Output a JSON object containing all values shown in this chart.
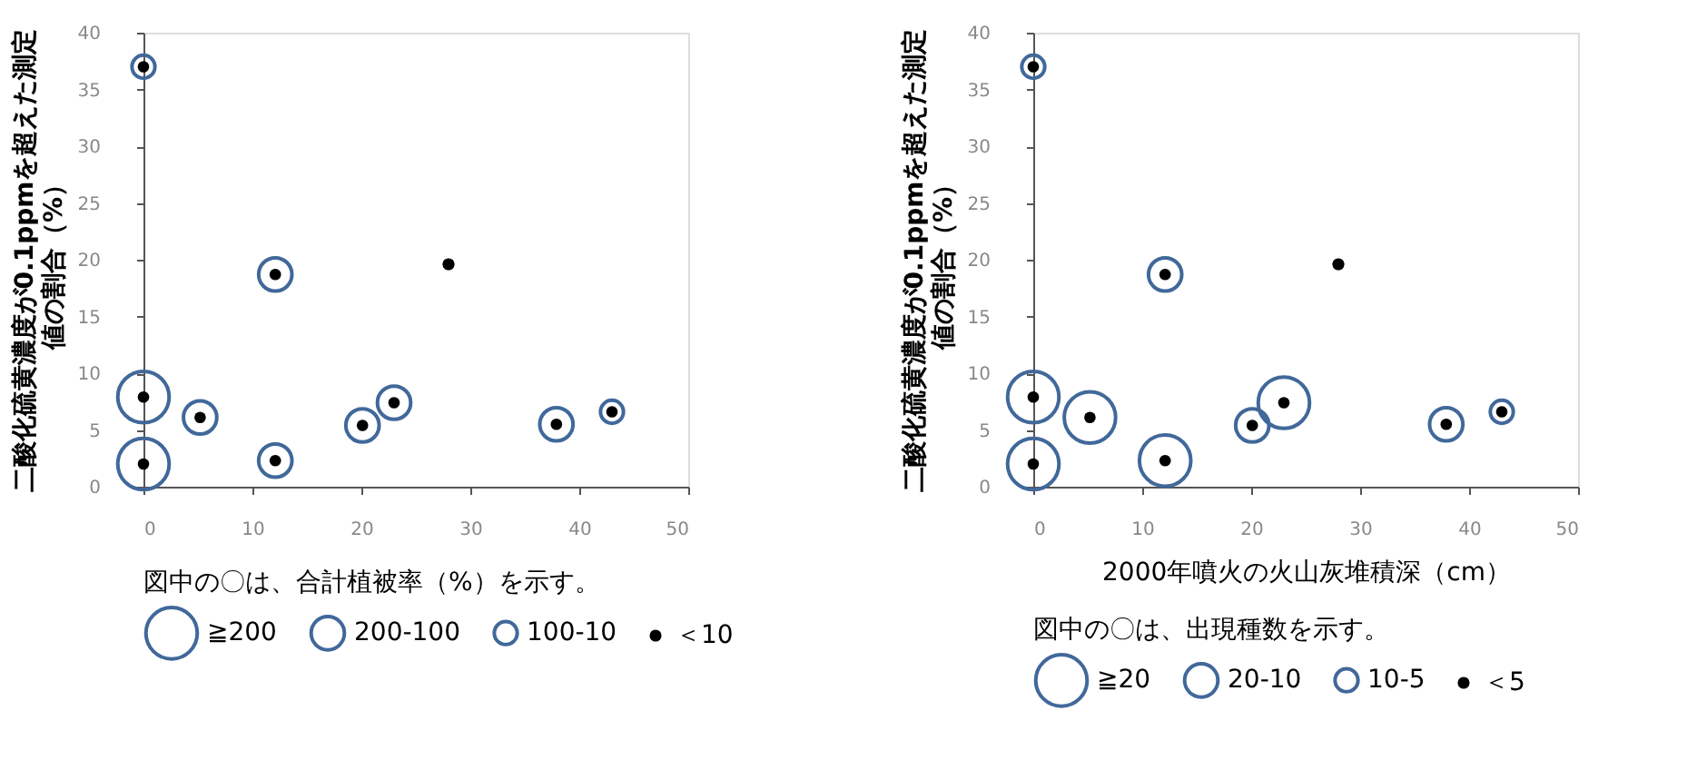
{
  "chart_data": [
    {
      "type": "bubble",
      "ylabel": "二酸化硫黄濃度が0.1ppmを超えた測定値の割合（%）",
      "legend_title": "図中の〇は、合計植被率（%）を示す。",
      "legend": "bottom",
      "grid": false,
      "xlim": [
        0,
        50
      ],
      "xticks": [
        0,
        10,
        20,
        30,
        40,
        50
      ],
      "ylim": [
        0,
        40
      ],
      "yticks": [
        0,
        5,
        10,
        15,
        20,
        25,
        30,
        35,
        40
      ],
      "series": [
        {
          "name": "≧200",
          "color": "#41689a",
          "x": [
            0,
            0
          ],
          "values": [
            7.9,
            2.0
          ],
          "sizes": [
            1,
            1
          ]
        },
        {
          "name": "200-100",
          "color": "#41689a",
          "x": [
            12.1,
            5.2,
            12.1,
            20.1,
            23.0,
            37.9
          ],
          "values": [
            18.7,
            6.1,
            2.3,
            5.4,
            7.4,
            5.5
          ],
          "sizes": [
            0.42,
            0.42,
            0.42,
            0.42,
            0.42,
            0.42
          ]
        },
        {
          "name": "100-10",
          "color": "#41689a",
          "x": [
            0,
            43.0
          ],
          "values": [
            37.0,
            6.6
          ],
          "sizes": [
            0.2,
            0.2
          ]
        },
        {
          "name": "＜10",
          "color": "#000000",
          "x": [
            28.0
          ],
          "values": [
            19.6
          ],
          "sizes": [
            0.026
          ]
        }
      ]
    },
    {
      "type": "bubble",
      "ylabel": "二酸化硫黄濃度が0.1ppmを超えた測定値の割合（%）",
      "xlabel": "2000年噴火の火山灰堆積深（cm）",
      "legend_title": "図中の〇は、出現種数を示す。",
      "legend": "bottom",
      "grid": false,
      "xlim": [
        0,
        50
      ],
      "xticks": [
        0,
        10,
        20,
        30,
        40,
        50
      ],
      "ylim": [
        0,
        40
      ],
      "yticks": [
        0,
        5,
        10,
        15,
        20,
        25,
        30,
        35,
        40
      ],
      "series": [
        {
          "name": "≧20",
          "color": "#41689a",
          "x": [
            0,
            5.2,
            0,
            12.1,
            23.0
          ],
          "values": [
            7.9,
            6.1,
            2.0,
            2.3,
            7.4
          ],
          "sizes": [
            1,
            1,
            1,
            1,
            1
          ]
        },
        {
          "name": "20-10",
          "color": "#41689a",
          "x": [
            12.1,
            20.1,
            37.9
          ],
          "values": [
            18.7,
            5.4,
            5.5
          ],
          "sizes": [
            0.42,
            0.42,
            0.42
          ]
        },
        {
          "name": "10-5",
          "color": "#41689a",
          "x": [
            0,
            43.0
          ],
          "values": [
            37.0,
            6.6
          ],
          "sizes": [
            0.2,
            0.2
          ]
        },
        {
          "name": "＜5",
          "color": "#000000",
          "x": [
            28.0
          ],
          "values": [
            19.6
          ],
          "sizes": [
            0.026
          ]
        }
      ]
    }
  ]
}
